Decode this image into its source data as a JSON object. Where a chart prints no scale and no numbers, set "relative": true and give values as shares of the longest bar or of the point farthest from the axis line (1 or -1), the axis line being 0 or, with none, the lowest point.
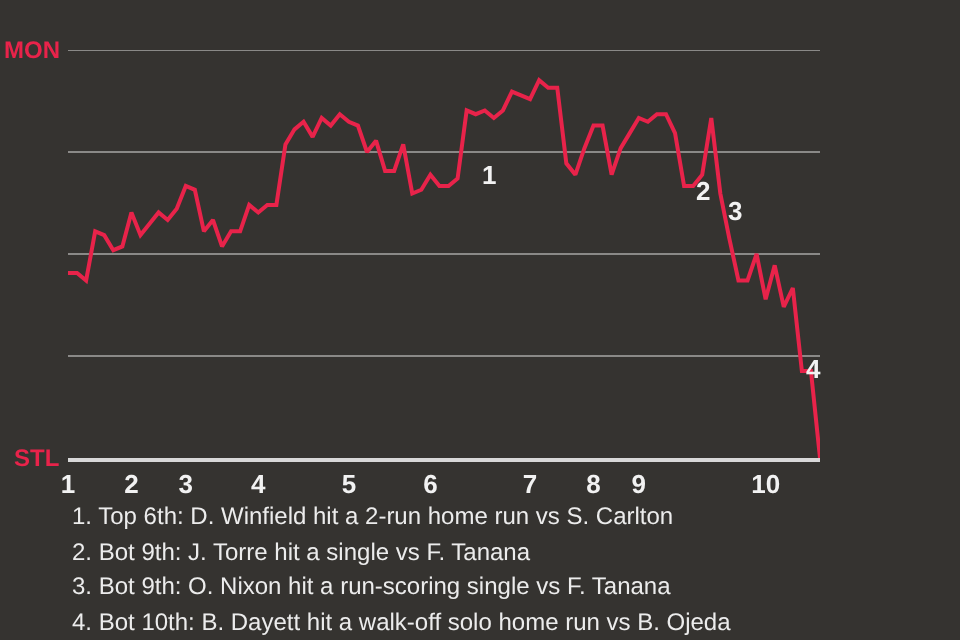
{
  "chart_data": {
    "type": "line",
    "relative": true,
    "categories": [
      "1",
      null,
      null,
      null,
      null,
      null,
      null,
      "2",
      null,
      null,
      null,
      null,
      null,
      "3",
      null,
      null,
      null,
      null,
      null,
      null,
      null,
      "4",
      null,
      null,
      null,
      null,
      null,
      null,
      null,
      null,
      null,
      "5",
      null,
      null,
      null,
      null,
      null,
      null,
      null,
      null,
      "6",
      null,
      null,
      null,
      null,
      null,
      null,
      null,
      null,
      null,
      null,
      "7",
      null,
      null,
      null,
      null,
      null,
      null,
      "8",
      null,
      null,
      null,
      null,
      "9",
      null,
      null,
      null,
      null,
      null,
      null,
      null,
      null,
      null,
      null,
      null,
      null,
      null,
      "10",
      null,
      null,
      null,
      null,
      null,
      null
    ],
    "series": [
      {
        "color": "#e8234a",
        "values": [
          0.49,
          0.49,
          0.47,
          0.6,
          0.59,
          0.55,
          0.56,
          0.65,
          0.59,
          0.62,
          0.65,
          0.63,
          0.66,
          0.72,
          0.71,
          0.6,
          0.63,
          0.56,
          0.6,
          0.6,
          0.67,
          0.65,
          0.67,
          0.67,
          0.83,
          0.87,
          0.89,
          0.85,
          0.9,
          0.88,
          0.91,
          0.89,
          0.88,
          0.81,
          0.84,
          0.76,
          0.76,
          0.83,
          0.7,
          0.71,
          0.75,
          0.72,
          0.72,
          0.74,
          0.92,
          0.91,
          0.92,
          0.9,
          0.92,
          0.97,
          0.96,
          0.95,
          1,
          0.98,
          0.98,
          0.78,
          0.75,
          0.82,
          0.88,
          0.88,
          0.75,
          0.82,
          0.86,
          0.9,
          0.89,
          0.91,
          0.91,
          0.86,
          0.72,
          0.72,
          0.75,
          0.9,
          0.7,
          0.58,
          0.47,
          0.47,
          0.54,
          0.42,
          0.51,
          0.4,
          0.45,
          0.23,
          0.23,
          0
        ]
      }
    ],
    "marker": "none",
    "line_style": "solid",
    "ref_lines": [
      {
        "axis": "y",
        "value": 0.27,
        "color": "#8a8987"
      },
      {
        "axis": "y",
        "value": 0.54,
        "color": "#8a8987"
      },
      {
        "axis": "y",
        "value": 0.81,
        "color": "#8a8987"
      },
      {
        "axis": "y",
        "value": 1.08,
        "color": "#8a8987"
      }
    ],
    "annotations": [
      "MON",
      "STL",
      "1",
      "2",
      "3",
      "4",
      "1. Top 6th: D. Winfield hit a 2-run home run vs S. Carlton",
      "2. Bot 9th: J. Torre hit a single vs F. Tanana",
      "3. Bot 9th: O. Nixon hit a run-scoring single vs F. Tanana",
      "4. Bot 10th: B. Dayett hit a walk-off solo home run vs B. Ojeda"
    ]
  }
}
